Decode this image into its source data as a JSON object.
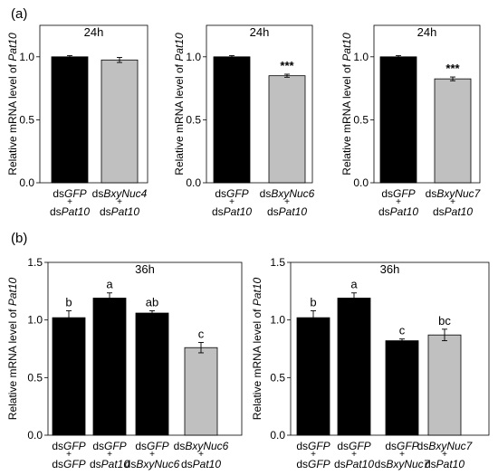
{
  "panels": {
    "a": "(a)",
    "b": "(b)"
  },
  "chart_data": [
    {
      "type": "bar",
      "panel": "a",
      "title": "24h",
      "ylabel": "Relative mRNA level of Pat10",
      "ylim": [
        0,
        1.25
      ],
      "yticks": [
        "0.0",
        "0.5",
        "1.0"
      ],
      "categories": [
        [
          "dsGFP",
          "+",
          "dsPat10"
        ],
        [
          "dsBxyNuc4",
          "+",
          "dsPat10"
        ]
      ],
      "values": [
        1.0,
        0.975
      ],
      "errors": [
        0.01,
        0.02
      ],
      "bar_colors": [
        "#000000",
        "#c0c0c0"
      ],
      "annotations": [
        "",
        ""
      ]
    },
    {
      "type": "bar",
      "panel": "a",
      "title": "24h",
      "ylabel": "Relative mRNA level of Pat10",
      "ylim": [
        0,
        1.25
      ],
      "yticks": [
        "0.0",
        "0.5",
        "1.0"
      ],
      "categories": [
        [
          "dsGFP",
          "+",
          "dsPat10"
        ],
        [
          "dsBxyNuc6",
          "+",
          "dsPat10"
        ]
      ],
      "values": [
        1.0,
        0.85
      ],
      "errors": [
        0.01,
        0.012
      ],
      "bar_colors": [
        "#000000",
        "#c0c0c0"
      ],
      "annotations": [
        "",
        "***"
      ]
    },
    {
      "type": "bar",
      "panel": "a",
      "title": "24h",
      "ylabel": "Relative mRNA level of Pat10",
      "ylim": [
        0,
        1.25
      ],
      "yticks": [
        "0.0",
        "0.5",
        "1.0"
      ],
      "categories": [
        [
          "dsGFP",
          "+",
          "dsPat10"
        ],
        [
          "dsBxyNuc7",
          "+",
          "dsPat10"
        ]
      ],
      "values": [
        1.0,
        0.825
      ],
      "errors": [
        0.01,
        0.015
      ],
      "bar_colors": [
        "#000000",
        "#c0c0c0"
      ],
      "annotations": [
        "",
        "***"
      ]
    },
    {
      "type": "bar",
      "panel": "b",
      "title": "36h",
      "ylabel": "Relative mRNA level of Pat10",
      "ylim": [
        0,
        1.5
      ],
      "yticks": [
        "0.0",
        "0.5",
        "1.0",
        "1.5"
      ],
      "categories": [
        [
          "dsGFP",
          "+",
          "dsGFP"
        ],
        [
          "dsGFP",
          "+",
          "dsPat10"
        ],
        [
          "dsGFP",
          "+",
          "dsBxyNuc6"
        ],
        [
          "dsBxyNuc6",
          "+",
          "dsPat10"
        ]
      ],
      "values": [
        1.02,
        1.19,
        1.06,
        0.76
      ],
      "errors": [
        0.06,
        0.045,
        0.02,
        0.045
      ],
      "bar_colors": [
        "#000000",
        "#000000",
        "#000000",
        "#c0c0c0"
      ],
      "annotations": [
        "b",
        "a",
        "ab",
        "c"
      ]
    },
    {
      "type": "bar",
      "panel": "b",
      "title": "36h",
      "ylabel": "Relative mRNA level of Pat10",
      "ylim": [
        0,
        1.5
      ],
      "yticks": [
        "0.0",
        "0.5",
        "1.0",
        "1.5"
      ],
      "categories": [
        [
          "dsGFP",
          "+",
          "dsGFP"
        ],
        [
          "dsGFP",
          "+",
          "dsPat10"
        ],
        [
          "dsGFP",
          "+",
          "dsBxyNuc7"
        ],
        [
          "dsBxyNuc7",
          "+",
          "dsPat10"
        ]
      ],
      "values": [
        1.02,
        1.19,
        0.82,
        0.87
      ],
      "errors": [
        0.06,
        0.045,
        0.015,
        0.05
      ],
      "bar_colors": [
        "#000000",
        "#000000",
        "#000000",
        "#c0c0c0"
      ],
      "annotations": [
        "b",
        "a",
        "c",
        "bc"
      ]
    }
  ]
}
